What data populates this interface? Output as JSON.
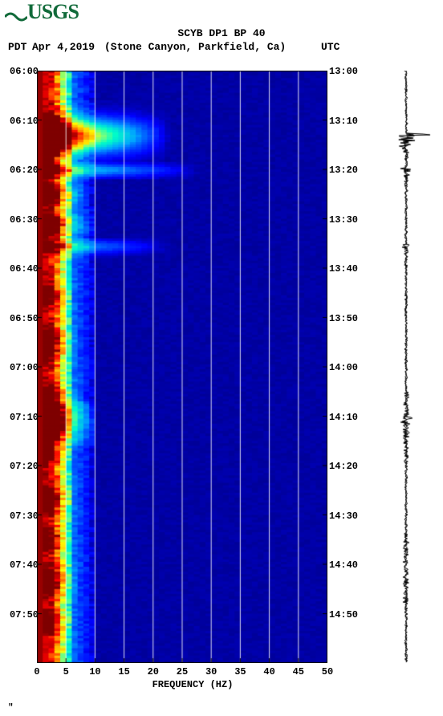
{
  "logo_text": "USGS",
  "title": "SCYB DP1 BP 40",
  "pdt_label": "PDT",
  "date": "Apr 4,2019",
  "station": "(Stone Canyon, Parkfield, Ca)",
  "utc_label": "UTC",
  "x_axis_title": "FREQUENCY (HZ)",
  "x_ticks": [
    "0",
    "5",
    "10",
    "15",
    "20",
    "25",
    "30",
    "35",
    "40",
    "45",
    "50"
  ],
  "left_time_labels": [
    "06:00",
    "06:10",
    "06:20",
    "06:30",
    "06:40",
    "06:50",
    "07:00",
    "07:10",
    "07:20",
    "07:30",
    "07:40",
    "07:50"
  ],
  "right_time_labels": [
    "13:00",
    "13:10",
    "13:20",
    "13:30",
    "13:40",
    "13:50",
    "14:00",
    "14:10",
    "14:20",
    "14:30",
    "14:40",
    "14:50"
  ],
  "spectrogram": {
    "type": "spectrogram",
    "background_color": "#0000a5",
    "xlim": [
      0,
      50
    ],
    "x_tick_step": 5,
    "grid_color": "#ffffff",
    "time_span_minutes": 120,
    "freq_bins": 50,
    "time_bins": 240,
    "colormap": [
      [
        0.0,
        "#00007f"
      ],
      [
        0.1,
        "#0000ff"
      ],
      [
        0.3,
        "#00a5ff"
      ],
      [
        0.45,
        "#00ffc8"
      ],
      [
        0.55,
        "#7fff7a"
      ],
      [
        0.65,
        "#ffff00"
      ],
      [
        0.8,
        "#ff7f00"
      ],
      [
        0.9,
        "#ff0000"
      ],
      [
        1.0,
        "#7f0000"
      ]
    ],
    "low_freq_base_intensity": 0.82,
    "mid_freq_base_intensity": 0.18,
    "high_freq_base_intensity": 0.02,
    "events": [
      {
        "time_frac": 0.108,
        "strength": 1.0,
        "spread": 0.02,
        "freq_extent": 0.45
      },
      {
        "time_frac": 0.125,
        "strength": 0.55,
        "spread": 0.01,
        "freq_extent": 0.25
      },
      {
        "time_frac": 0.166,
        "strength": 0.45,
        "spread": 0.008,
        "freq_extent": 0.55
      },
      {
        "time_frac": 0.208,
        "strength": 0.35,
        "spread": 0.015,
        "freq_extent": 0.18
      },
      {
        "time_frac": 0.258,
        "strength": 0.4,
        "spread": 0.015,
        "freq_extent": 0.2
      },
      {
        "time_frac": 0.295,
        "strength": 0.35,
        "spread": 0.008,
        "freq_extent": 0.45
      },
      {
        "time_frac": 0.375,
        "strength": 0.25,
        "spread": 0.015,
        "freq_extent": 0.12
      },
      {
        "time_frac": 0.458,
        "strength": 0.32,
        "spread": 0.02,
        "freq_extent": 0.14
      },
      {
        "time_frac": 0.56,
        "strength": 0.45,
        "spread": 0.02,
        "freq_extent": 0.15
      },
      {
        "time_frac": 0.585,
        "strength": 0.68,
        "spread": 0.03,
        "freq_extent": 0.2
      },
      {
        "time_frac": 0.64,
        "strength": 0.28,
        "spread": 0.015,
        "freq_extent": 0.12
      },
      {
        "time_frac": 0.72,
        "strength": 0.3,
        "spread": 0.02,
        "freq_extent": 0.13
      },
      {
        "time_frac": 0.79,
        "strength": 0.26,
        "spread": 0.015,
        "freq_extent": 0.12
      },
      {
        "time_frac": 0.86,
        "strength": 0.33,
        "spread": 0.02,
        "freq_extent": 0.14
      },
      {
        "time_frac": 0.93,
        "strength": 0.27,
        "spread": 0.015,
        "freq_extent": 0.12
      }
    ]
  },
  "seismogram": {
    "color": "#000000",
    "baseline_amp": 0.6,
    "noise_amp": 1.6,
    "events": [
      {
        "time_frac": 0.108,
        "amp": 38,
        "decay": 0.012
      },
      {
        "time_frac": 0.166,
        "amp": 12,
        "decay": 0.01
      },
      {
        "time_frac": 0.295,
        "amp": 7,
        "decay": 0.01
      },
      {
        "time_frac": 0.585,
        "amp": 5,
        "decay": 0.018
      }
    ],
    "broad_bursts": [
      {
        "start": 0.54,
        "end": 0.66,
        "amp": 3.2
      },
      {
        "start": 0.78,
        "end": 0.9,
        "amp": 2.8
      }
    ]
  }
}
